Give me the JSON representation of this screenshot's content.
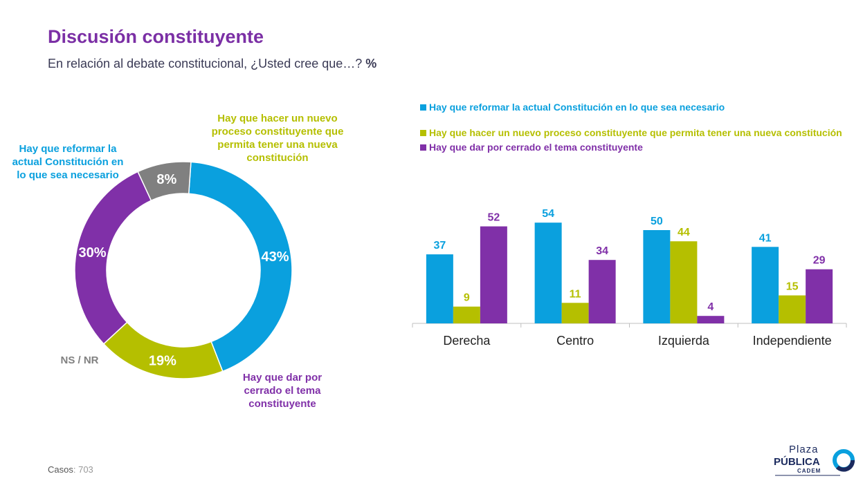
{
  "header": {
    "title": "Discusión constituyente",
    "subtitle": "En relación al debate constitucional, ¿Usted cree que…?",
    "subtitle_unit": "%"
  },
  "colors": {
    "blue": "#0aa0de",
    "green": "#b5bf00",
    "purple": "#8030a8",
    "gray": "#808080"
  },
  "donut": {
    "labels": {
      "reformar": "Hay que reformar la actual Constitución en lo que sea necesario",
      "nuevo": "Hay que hacer un nuevo proceso constituyente que permita tener una nueva constitución",
      "cerrado": "Hay que dar por cerrado el tema constituyente",
      "nsnr": "NS / NR"
    }
  },
  "legend": {
    "reformar": "Hay que reformar la actual Constitución en lo que sea necesario",
    "nuevo": "Hay que hacer un nuevo proceso constituyente que permita tener una nueva constitución",
    "cerrado": "Hay que dar por cerrado el tema constituyente"
  },
  "footer": {
    "casos_label": "Casos",
    "casos_value": ": 703"
  },
  "logo": {
    "line1": "Plaza",
    "line2": "PÚBLICA",
    "line3": "CADEM"
  },
  "chart_data": [
    {
      "type": "pie",
      "variant": "donut",
      "slices": [
        {
          "name": "Hay que reformar la actual Constitución en lo que sea necesario",
          "value": 43,
          "label": "43%",
          "color": "#0aa0de"
        },
        {
          "name": "Hay que hacer un nuevo proceso constituyente que permita tener una nueva constitución",
          "value": 19,
          "label": "19%",
          "color": "#b5bf00"
        },
        {
          "name": "Hay que dar por cerrado el tema constituyente",
          "value": 30,
          "label": "30%",
          "color": "#8030a8"
        },
        {
          "name": "NS / NR",
          "value": 8,
          "label": "8%",
          "color": "#808080"
        }
      ]
    },
    {
      "type": "bar",
      "categories": [
        "Derecha",
        "Centro",
        "Izquierda",
        "Independiente"
      ],
      "series": [
        {
          "name": "Hay que reformar la actual Constitución en lo que sea necesario",
          "values": [
            37,
            54,
            50,
            41
          ],
          "color": "#0aa0de"
        },
        {
          "name": "Hay que hacer un nuevo proceso constituyente que permita tener una nueva constitución",
          "values": [
            9,
            11,
            44,
            15
          ],
          "color": "#b5bf00"
        },
        {
          "name": "Hay que dar por cerrado el tema constituyente",
          "values": [
            52,
            34,
            4,
            29
          ],
          "color": "#8030a8"
        }
      ],
      "ylim": [
        0,
        60
      ],
      "grid": false,
      "legend_position": "top"
    }
  ]
}
